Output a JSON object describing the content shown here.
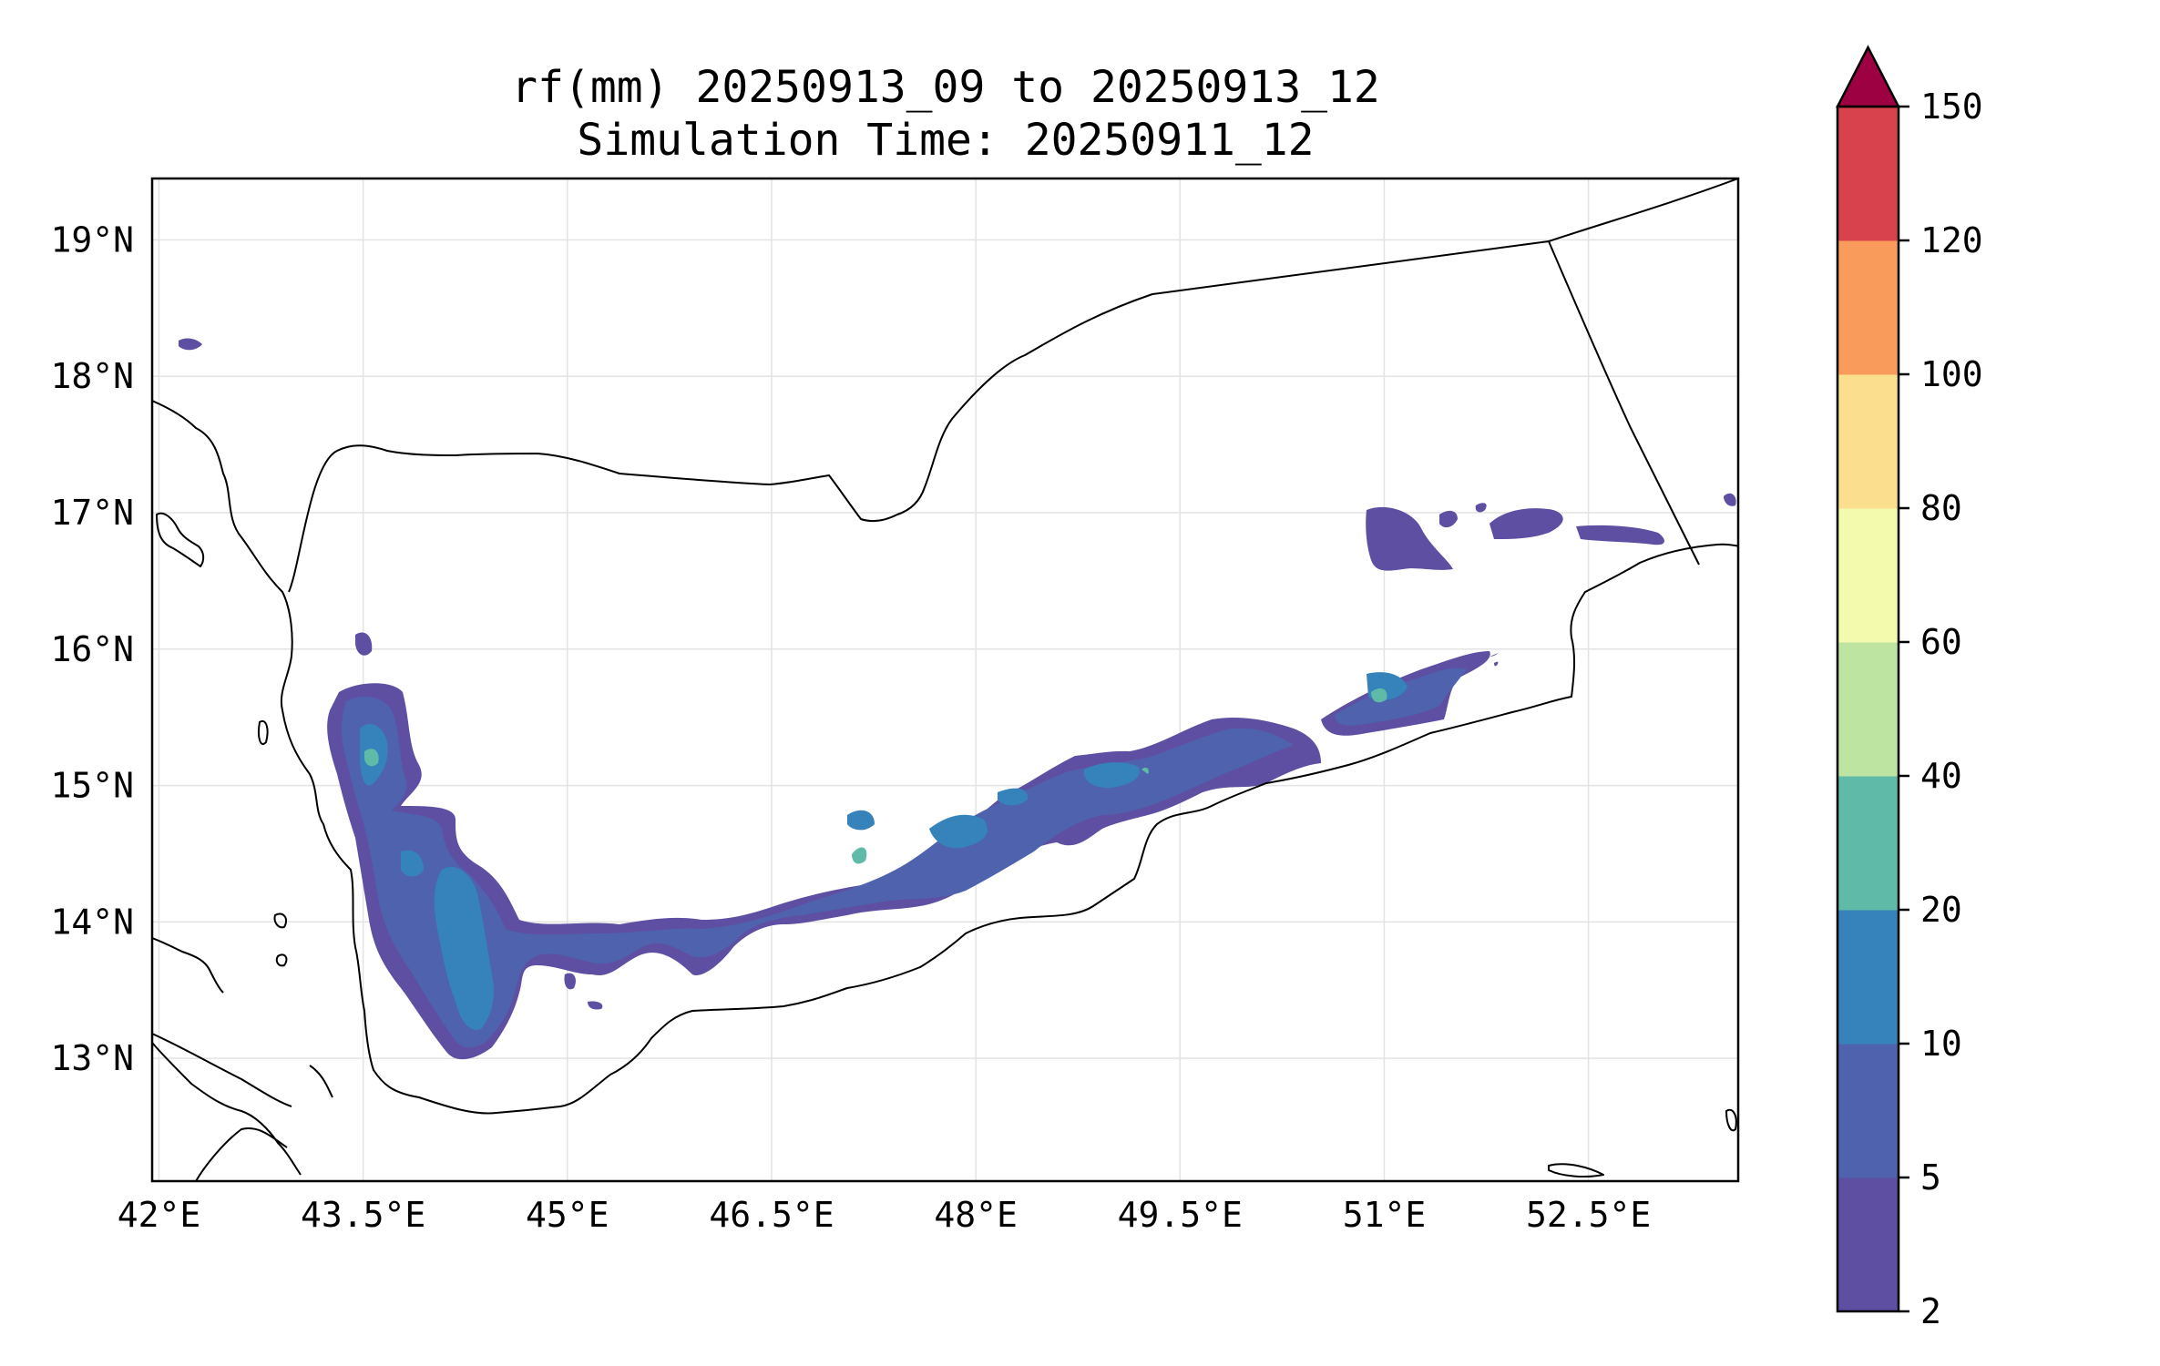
{
  "title": {
    "line1": "rf(mm) 20250913_09 to 20250913_12",
    "line2": "Simulation Time: 20250911_12"
  },
  "map": {
    "projection": "PlateCarree",
    "lon_range": [
      41.95,
      53.6
    ],
    "lat_range": [
      12.1,
      19.45
    ],
    "x_ticks": [
      {
        "value": 42.0,
        "label": "42°E"
      },
      {
        "value": 43.5,
        "label": "43.5°E"
      },
      {
        "value": 45.0,
        "label": "45°E"
      },
      {
        "value": 46.5,
        "label": "46.5°E"
      },
      {
        "value": 48.0,
        "label": "48°E"
      },
      {
        "value": 49.5,
        "label": "49.5°E"
      },
      {
        "value": 51.0,
        "label": "51°E"
      },
      {
        "value": 52.5,
        "label": "52.5°E"
      }
    ],
    "y_ticks": [
      {
        "value": 13,
        "label": "13°N"
      },
      {
        "value": 14,
        "label": "14°N"
      },
      {
        "value": 15,
        "label": "15°N"
      },
      {
        "value": 16,
        "label": "16°N"
      },
      {
        "value": 17,
        "label": "17°N"
      },
      {
        "value": 18,
        "label": "18°N"
      },
      {
        "value": 19,
        "label": "19°N"
      }
    ],
    "gridlines": true
  },
  "colorbar": {
    "levels": [
      2,
      5,
      10,
      20,
      40,
      60,
      80,
      100,
      120,
      150
    ],
    "tick_labels": [
      "2",
      "5",
      "10",
      "20",
      "40",
      "60",
      "80",
      "100",
      "120",
      "150"
    ],
    "colors": [
      "#5e4fa2",
      "#4e62ae",
      "#3682ba",
      "#5fbaa8",
      "#bde4a0",
      "#f3f9ad",
      "#fbdf8e",
      "#f99b5b",
      "#d7424d",
      "#9e0142"
    ],
    "extend": "max"
  }
}
